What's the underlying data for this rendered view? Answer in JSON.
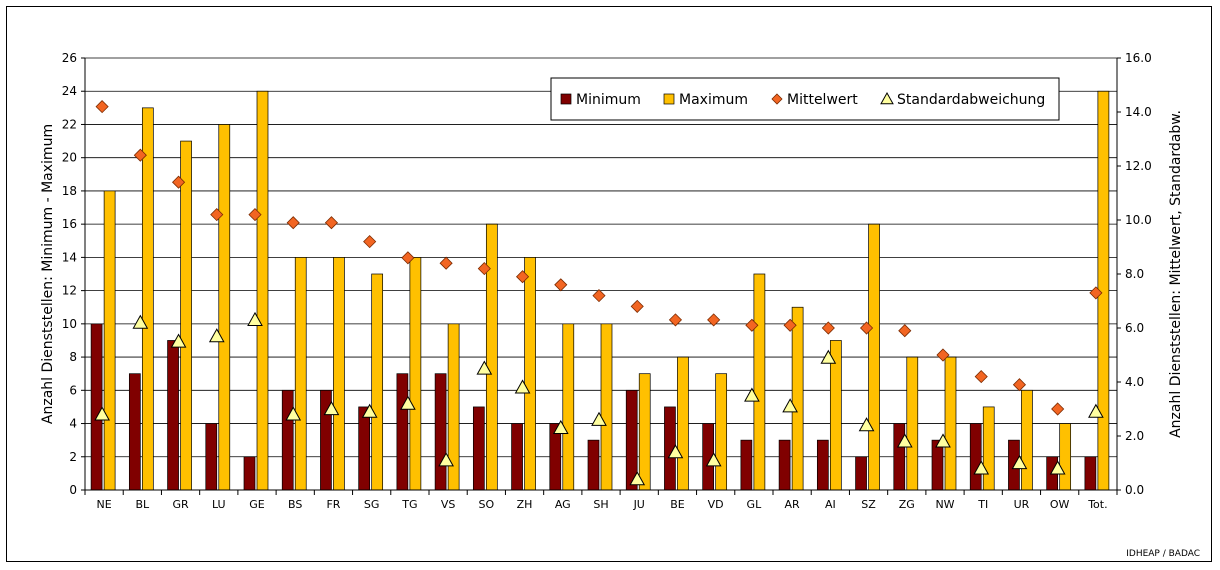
{
  "chart_data": {
    "type": "bar",
    "categories": [
      "NE",
      "BL",
      "GR",
      "LU",
      "GE",
      "BS",
      "FR",
      "SG",
      "TG",
      "VS",
      "SO",
      "ZH",
      "AG",
      "SH",
      "JU",
      "BE",
      "VD",
      "GL",
      "AR",
      "AI",
      "SZ",
      "ZG",
      "NW",
      "TI",
      "UR",
      "OW",
      "Tot."
    ],
    "series": [
      {
        "name": "Minimum",
        "axis": "left",
        "mark": "bar",
        "color": "#800000",
        "values": [
          10,
          7,
          9,
          4,
          2,
          6,
          6,
          5,
          7,
          7,
          5,
          4,
          4,
          3,
          6,
          5,
          4,
          3,
          3,
          3,
          2,
          4,
          3,
          4,
          3,
          2,
          2
        ]
      },
      {
        "name": "Maximum",
        "axis": "left",
        "mark": "bar",
        "color": "#FFC000",
        "values": [
          18,
          23,
          21,
          22,
          24,
          14,
          14,
          13,
          14,
          10,
          16,
          14,
          10,
          10,
          7,
          8,
          7,
          13,
          11,
          9,
          16,
          8,
          8,
          5,
          6,
          4,
          24
        ]
      },
      {
        "name": "Mittelwert",
        "axis": "right",
        "mark": "diamond",
        "color": "#F26522",
        "values": [
          14.2,
          12.4,
          11.4,
          10.2,
          10.2,
          9.9,
          9.9,
          9.2,
          8.6,
          8.4,
          8.2,
          7.9,
          7.6,
          7.2,
          6.8,
          6.3,
          6.3,
          6.1,
          6.1,
          6.0,
          6.0,
          5.9,
          5.0,
          4.2,
          3.9,
          3.0,
          7.3
        ]
      },
      {
        "name": "Standardabweichung",
        "axis": "right",
        "mark": "triangle",
        "color": "#FFFFA0",
        "values": [
          2.8,
          6.2,
          5.5,
          5.7,
          6.3,
          2.8,
          3.0,
          2.9,
          3.2,
          1.1,
          4.5,
          3.8,
          2.3,
          2.6,
          0.4,
          1.4,
          1.1,
          3.5,
          3.1,
          4.9,
          2.4,
          1.8,
          1.8,
          0.8,
          1.0,
          0.8,
          2.9
        ]
      }
    ],
    "ylabel": "Anzahl Dienststellen: Minimum - Maximum",
    "y2label": "Anzahl Dienststellen: Mittelwert, Standardabw.",
    "ylim": [
      0,
      26
    ],
    "yticks": [
      "0",
      "2",
      "4",
      "6",
      "8",
      "10",
      "12",
      "14",
      "16",
      "18",
      "20",
      "22",
      "24",
      "26"
    ],
    "y2lim": [
      0,
      16
    ],
    "y2ticks": [
      "0.0",
      "2.0",
      "4.0",
      "6.0",
      "8.0",
      "10.0",
      "12.0",
      "14.0",
      "16.0"
    ],
    "grid": true,
    "legend_position": "top-right"
  },
  "source_note": "IDHEAP / BADAC"
}
